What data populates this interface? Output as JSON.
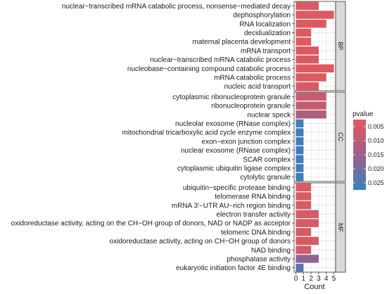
{
  "chart_data": {
    "type": "bar",
    "orientation": "horizontal",
    "xlabel": "Count",
    "ylabel": "",
    "xlim": [
      0,
      5
    ],
    "x_ticks": [
      "0",
      "1",
      "2",
      "3",
      "4",
      "5"
    ],
    "grid": true,
    "facets": [
      {
        "name": "BP",
        "terms": [
          {
            "label": "nuclear−transcribed mRNA catabolic process, nonsense−mediated decay",
            "count": 3,
            "pvalue": 0.004
          },
          {
            "label": "dephosphorylation",
            "count": 5,
            "pvalue": 0.003
          },
          {
            "label": "RNA localization",
            "count": 4,
            "pvalue": 0.0035
          },
          {
            "label": "decidualization",
            "count": 2,
            "pvalue": 0.003
          },
          {
            "label": "maternal placenta development",
            "count": 2,
            "pvalue": 0.003
          },
          {
            "label": "mRNA transport",
            "count": 3,
            "pvalue": 0.0035
          },
          {
            "label": "nuclear−transcribed mRNA catabolic process",
            "count": 3,
            "pvalue": 0.0035
          },
          {
            "label": "nucleobase−containing compound catabolic process",
            "count": 5,
            "pvalue": 0.003
          },
          {
            "label": "mRNA catabolic process",
            "count": 4,
            "pvalue": 0.0035
          },
          {
            "label": "nucleic acid transport",
            "count": 3,
            "pvalue": 0.0035
          }
        ]
      },
      {
        "name": "CC",
        "terms": [
          {
            "label": "cytoplasmic ribonucleoprotein granule",
            "count": 4,
            "pvalue": 0.007
          },
          {
            "label": "ribonucleoprotein granule",
            "count": 4,
            "pvalue": 0.0075
          },
          {
            "label": "nuclear speck",
            "count": 4,
            "pvalue": 0.012
          },
          {
            "label": "nucleolar exosome (RNase complex)",
            "count": 1,
            "pvalue": 0.026
          },
          {
            "label": "mitochondrial tricarboxylic acid cycle enzyme complex",
            "count": 1,
            "pvalue": 0.0265
          },
          {
            "label": "exon−exon junction complex",
            "count": 1,
            "pvalue": 0.0265
          },
          {
            "label": "nuclear exosome (RNase complex)",
            "count": 1,
            "pvalue": 0.0265
          },
          {
            "label": "SCAR complex",
            "count": 1,
            "pvalue": 0.027
          },
          {
            "label": "cytoplasmic ubiquitin ligase complex",
            "count": 1,
            "pvalue": 0.027
          },
          {
            "label": "cytolytic granule",
            "count": 1,
            "pvalue": 0.027
          }
        ]
      },
      {
        "name": "MF",
        "terms": [
          {
            "label": "ubiquitin−specific protease binding",
            "count": 2,
            "pvalue": 0.0035
          },
          {
            "label": "telomerase RNA binding",
            "count": 2,
            "pvalue": 0.004
          },
          {
            "label": "mRNA 3'−UTR AU−rich region binding",
            "count": 2,
            "pvalue": 0.004
          },
          {
            "label": "electron transfer activity",
            "count": 3,
            "pvalue": 0.0045
          },
          {
            "label": "oxidoreductase activity, acting on the CH−OH group of donors, NAD or NADP as acceptor",
            "count": 3,
            "pvalue": 0.0045
          },
          {
            "label": "telomeric DNA binding",
            "count": 2,
            "pvalue": 0.0045
          },
          {
            "label": "oxidoreductase activity, acting on CH−OH group of donors",
            "count": 3,
            "pvalue": 0.005
          },
          {
            "label": "NAD binding",
            "count": 2,
            "pvalue": 0.005
          },
          {
            "label": "phosphatase activity",
            "count": 3,
            "pvalue": 0.017
          },
          {
            "label": "eukaryotic initiation factor 4E binding",
            "count": 1,
            "pvalue": 0.023
          }
        ]
      }
    ],
    "legend": {
      "title": "pvalue",
      "position": "right",
      "range": [
        0.0025,
        0.0275
      ],
      "ticks": [
        {
          "value": 0.005,
          "label": "0.005"
        },
        {
          "value": 0.01,
          "label": "0.010"
        },
        {
          "value": 0.015,
          "label": "0.015"
        },
        {
          "value": 0.02,
          "label": "0.020"
        },
        {
          "value": 0.025,
          "label": "0.025"
        }
      ],
      "low_color": "#E05A5E",
      "high_color": "#3A7FC1"
    }
  }
}
